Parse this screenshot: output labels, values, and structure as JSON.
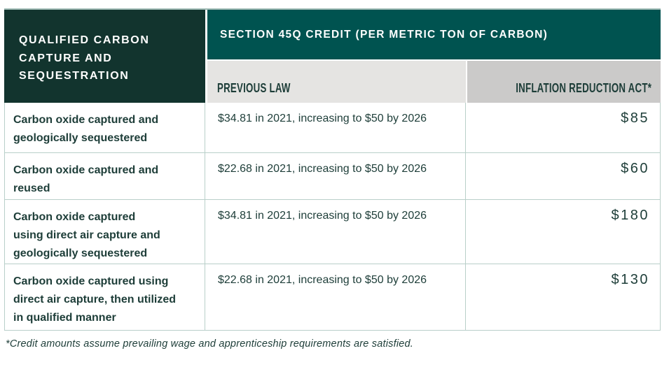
{
  "colors": {
    "dark_header": "#12342e",
    "teal_header": "#005350",
    "light_gray": "#e5e4e2",
    "mid_gray": "#cbcac9",
    "ink": "#1d3d38",
    "divider": "#b9cfc9",
    "top_edge": "#9db9b3"
  },
  "chart_data": {
    "type": "table",
    "title": "SECTION 45Q CREDIT (PER METRIC TON OF CARBON)",
    "row_group_header": "QUALIFIED CARBON\nCAPTURE AND\nSEQUESTRATION",
    "columns": [
      "PREVIOUS LAW",
      "INFLATION REDUCTION ACT*"
    ],
    "rows": [
      {
        "label": "Carbon oxide captured and\ngeologically sequestered",
        "previous_law": "$34.81 in 2021, increasing to $50 by 2026",
        "inflation_reduction_act": "$85"
      },
      {
        "label": "Carbon oxide captured and\nreused",
        "previous_law": "$22.68 in 2021, increasing to $50 by 2026",
        "inflation_reduction_act": "$60"
      },
      {
        "label": "Carbon oxide captured\nusing direct air capture and\ngeologically sequestered",
        "previous_law": "$34.81 in 2021, increasing to $50 by 2026",
        "inflation_reduction_act": "$180"
      },
      {
        "label": "Carbon oxide captured using\ndirect air capture, then utilized\nin qualified manner",
        "previous_law": "$22.68 in 2021, increasing to $50 by 2026",
        "inflation_reduction_act": "$130"
      }
    ],
    "footnote": "*Credit amounts assume prevailing wage and apprenticeship requirements are satisfied."
  }
}
